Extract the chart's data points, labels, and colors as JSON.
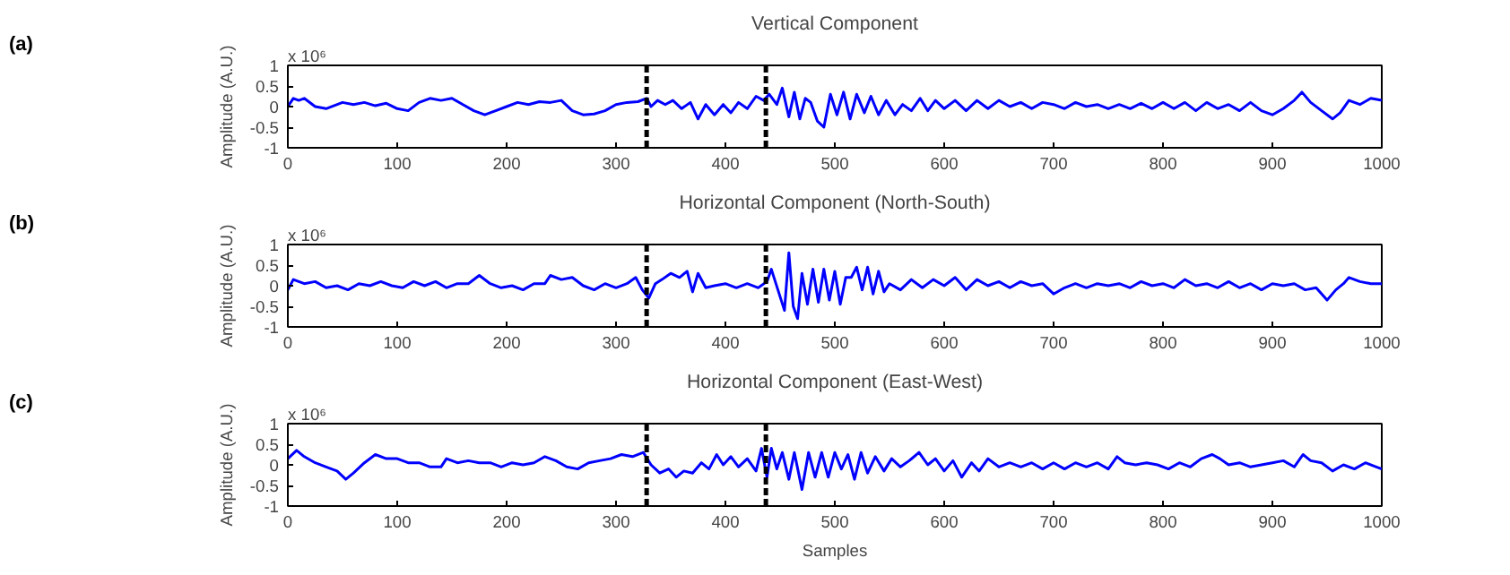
{
  "chart_data": [
    {
      "type": "line",
      "title": "Vertical Component",
      "ylabel": "Amplitude (A.U.)",
      "annotations": [
        "(a)",
        "x 10⁶"
      ],
      "xlim": [
        0,
        1000
      ],
      "ylim": [
        -1,
        1
      ],
      "xticks": [
        0,
        100,
        200,
        300,
        400,
        500,
        600,
        700,
        800,
        900,
        1000
      ],
      "yticks": [
        -1,
        -0.5,
        0,
        0.5,
        1
      ],
      "grid": false,
      "marker": "none",
      "line_style": "solid",
      "ref_lines": [
        {
          "axis": "x",
          "value": 328,
          "color": "#000000",
          "line_style": "dashed"
        },
        {
          "axis": "x",
          "value": 437,
          "color": "#000000",
          "line_style": "dashed"
        }
      ],
      "series": [
        {
          "color": "#0000ff",
          "x": [
            0,
            5,
            10,
            15,
            25,
            35,
            50,
            60,
            70,
            80,
            90,
            100,
            110,
            120,
            130,
            140,
            150,
            160,
            170,
            180,
            190,
            200,
            210,
            220,
            230,
            240,
            250,
            260,
            270,
            280,
            290,
            300,
            310,
            320,
            328,
            332,
            338,
            345,
            352,
            360,
            368,
            375,
            382,
            390,
            398,
            405,
            412,
            420,
            428,
            435,
            440,
            447,
            452,
            458,
            463,
            468,
            473,
            478,
            484,
            490,
            496,
            502,
            508,
            514,
            520,
            527,
            533,
            540,
            547,
            555,
            562,
            570,
            578,
            585,
            592,
            600,
            610,
            620,
            630,
            640,
            650,
            660,
            670,
            680,
            690,
            700,
            710,
            720,
            730,
            740,
            750,
            760,
            770,
            780,
            790,
            800,
            810,
            820,
            830,
            840,
            850,
            860,
            870,
            880,
            890,
            900,
            910,
            920,
            927,
            935,
            945,
            955,
            962,
            970,
            980,
            990,
            1000
          ],
          "values": [
            0,
            0.2,
            0.15,
            0.2,
            0,
            -0.05,
            0.1,
            0.05,
            0.1,
            0.02,
            0.08,
            -0.05,
            -0.1,
            0.1,
            0.2,
            0.15,
            0.2,
            0.05,
            -0.1,
            -0.2,
            -0.1,
            0,
            0.1,
            0.05,
            0.12,
            0.1,
            0.15,
            -0.1,
            -0.2,
            -0.18,
            -0.1,
            0.05,
            0.1,
            0.12,
            0.2,
            0,
            0.15,
            0.05,
            0.15,
            -0.05,
            0.1,
            -0.3,
            0.05,
            -0.2,
            0.05,
            -0.15,
            0.1,
            -0.05,
            0.25,
            0.15,
            0.3,
            0.05,
            0.45,
            -0.25,
            0.35,
            -0.3,
            0.2,
            0.1,
            -0.35,
            -0.5,
            0.3,
            -0.2,
            0.35,
            -0.3,
            0.3,
            -0.15,
            0.25,
            -0.2,
            0.15,
            -0.2,
            0.05,
            -0.1,
            0.2,
            -0.1,
            0.15,
            -0.05,
            0.15,
            -0.1,
            0.15,
            -0.05,
            0.15,
            0,
            0.1,
            -0.05,
            0.1,
            0.05,
            -0.05,
            0.1,
            0,
            0.05,
            -0.05,
            0.05,
            -0.05,
            0.08,
            -0.05,
            0.1,
            -0.05,
            0.1,
            -0.1,
            0.1,
            -0.05,
            0.05,
            -0.1,
            0.1,
            -0.1,
            -0.2,
            -0.05,
            0.15,
            0.35,
            0.1,
            -0.1,
            -0.3,
            -0.15,
            0.15,
            0.05,
            0.2,
            0.15
          ]
        }
      ]
    },
    {
      "type": "line",
      "title": "Horizontal Component (North-South)",
      "ylabel": "Amplitude (A.U.)",
      "annotations": [
        "(b)",
        "x 10⁶"
      ],
      "xlim": [
        0,
        1000
      ],
      "ylim": [
        -1,
        1
      ],
      "xticks": [
        0,
        100,
        200,
        300,
        400,
        500,
        600,
        700,
        800,
        900,
        1000
      ],
      "yticks": [
        -1,
        -0.5,
        0,
        0.5,
        1
      ],
      "grid": false,
      "marker": "none",
      "line_style": "solid",
      "ref_lines": [
        {
          "axis": "x",
          "value": 328,
          "color": "#000000",
          "line_style": "dashed"
        },
        {
          "axis": "x",
          "value": 437,
          "color": "#000000",
          "line_style": "dashed"
        }
      ],
      "series": [
        {
          "color": "#0000ff",
          "x": [
            0,
            5,
            15,
            25,
            35,
            45,
            55,
            65,
            75,
            85,
            95,
            105,
            115,
            125,
            135,
            145,
            155,
            165,
            175,
            185,
            195,
            205,
            215,
            225,
            235,
            240,
            250,
            260,
            270,
            280,
            290,
            300,
            310,
            318,
            324,
            330,
            336,
            342,
            350,
            358,
            365,
            370,
            375,
            382,
            390,
            400,
            410,
            420,
            430,
            438,
            442,
            448,
            454,
            458,
            462,
            466,
            470,
            475,
            480,
            485,
            490,
            495,
            500,
            505,
            510,
            515,
            520,
            525,
            530,
            535,
            540,
            545,
            550,
            560,
            570,
            580,
            590,
            600,
            610,
            620,
            630,
            640,
            650,
            660,
            670,
            680,
            690,
            700,
            710,
            720,
            730,
            740,
            750,
            760,
            770,
            780,
            790,
            800,
            810,
            820,
            830,
            840,
            850,
            860,
            870,
            880,
            890,
            900,
            910,
            920,
            930,
            940,
            950,
            958,
            965,
            970,
            980,
            990,
            1000
          ],
          "values": [
            -0.1,
            0.15,
            0.05,
            0.1,
            -0.05,
            0,
            -0.1,
            0.05,
            0,
            0.1,
            0,
            -0.05,
            0.1,
            0,
            0.1,
            -0.05,
            0.05,
            0.05,
            0.25,
            0.05,
            -0.05,
            0,
            -0.1,
            0.05,
            0.05,
            0.25,
            0.15,
            0.2,
            0,
            -0.1,
            0.05,
            -0.05,
            0.05,
            0.2,
            -0.1,
            -0.3,
            0.05,
            0.15,
            0.3,
            0.2,
            0.35,
            -0.15,
            0.3,
            -0.05,
            0,
            0.05,
            -0.05,
            0.05,
            -0.05,
            0.1,
            0.4,
            -0.1,
            -0.6,
            0.8,
            -0.5,
            -0.8,
            0.3,
            -0.45,
            0.4,
            -0.4,
            0.4,
            -0.35,
            0.35,
            -0.45,
            0.2,
            0.2,
            0.45,
            -0.1,
            0.45,
            -0.2,
            0.35,
            -0.15,
            0.05,
            -0.1,
            0.15,
            -0.05,
            0.15,
            0,
            0.2,
            -0.1,
            0.15,
            0,
            0.1,
            -0.05,
            0.1,
            0,
            0.05,
            -0.2,
            -0.05,
            0.05,
            -0.05,
            0.05,
            0,
            0.05,
            -0.05,
            0.1,
            0,
            0.05,
            -0.05,
            0.15,
            0,
            0.05,
            -0.05,
            0.1,
            -0.05,
            0.05,
            -0.1,
            0.05,
            0,
            0.05,
            -0.1,
            -0.05,
            -0.35,
            -0.1,
            0.05,
            0.2,
            0.1,
            0.05,
            0.05
          ]
        }
      ]
    },
    {
      "type": "line",
      "title": "Horizontal Component (East-West)",
      "xlabel": "Samples",
      "ylabel": "Amplitude (A.U.)",
      "annotations": [
        "(c)",
        "x 10⁶"
      ],
      "xlim": [
        0,
        1000
      ],
      "ylim": [
        -1,
        1
      ],
      "xticks": [
        0,
        100,
        200,
        300,
        400,
        500,
        600,
        700,
        800,
        900,
        1000
      ],
      "yticks": [
        -1,
        -0.5,
        0,
        0.5,
        1
      ],
      "grid": false,
      "marker": "none",
      "line_style": "solid",
      "ref_lines": [
        {
          "axis": "x",
          "value": 328,
          "color": "#000000",
          "line_style": "dashed"
        },
        {
          "axis": "x",
          "value": 437,
          "color": "#000000",
          "line_style": "dashed"
        }
      ],
      "series": [
        {
          "color": "#0000ff",
          "x": [
            0,
            8,
            15,
            25,
            35,
            45,
            53,
            60,
            70,
            80,
            90,
            100,
            110,
            120,
            130,
            140,
            145,
            155,
            165,
            175,
            185,
            195,
            205,
            215,
            225,
            235,
            245,
            255,
            265,
            275,
            285,
            295,
            305,
            315,
            325,
            332,
            340,
            348,
            355,
            362,
            370,
            378,
            385,
            392,
            398,
            405,
            412,
            420,
            428,
            433,
            438,
            442,
            447,
            452,
            458,
            463,
            470,
            476,
            482,
            488,
            494,
            500,
            506,
            512,
            518,
            524,
            530,
            537,
            545,
            552,
            560,
            568,
            577,
            585,
            592,
            600,
            608,
            616,
            625,
            632,
            640,
            650,
            660,
            670,
            680,
            690,
            700,
            710,
            720,
            730,
            740,
            750,
            758,
            765,
            775,
            785,
            795,
            805,
            815,
            825,
            835,
            845,
            852,
            860,
            870,
            880,
            890,
            900,
            910,
            920,
            928,
            935,
            945,
            955,
            965,
            975,
            985,
            995,
            1000
          ],
          "values": [
            0.15,
            0.35,
            0.2,
            0.05,
            -0.05,
            -0.15,
            -0.35,
            -0.2,
            0.05,
            0.25,
            0.15,
            0.15,
            0.05,
            0.05,
            -0.05,
            -0.05,
            0.15,
            0.05,
            0.1,
            0.05,
            0.05,
            -0.05,
            0.05,
            0,
            0.05,
            0.2,
            0.1,
            -0.05,
            -0.1,
            0.05,
            0.1,
            0.15,
            0.25,
            0.2,
            0.3,
            0,
            -0.2,
            -0.1,
            -0.3,
            -0.15,
            -0.2,
            0.05,
            -0.1,
            0.25,
            0,
            0.2,
            -0.05,
            0.15,
            -0.15,
            0.4,
            -0.3,
            0.4,
            -0.1,
            0.3,
            -0.35,
            0.3,
            -0.6,
            0.3,
            -0.3,
            0.3,
            -0.3,
            0.3,
            -0.1,
            0.25,
            -0.35,
            0.3,
            -0.2,
            0.2,
            -0.15,
            0.15,
            -0.05,
            0.1,
            0.3,
            0,
            0.15,
            -0.15,
            0.1,
            -0.3,
            0.05,
            -0.15,
            0.15,
            -0.05,
            0.05,
            -0.05,
            0.05,
            -0.1,
            0.05,
            -0.1,
            0.05,
            -0.05,
            0.05,
            -0.1,
            0.2,
            0.05,
            0,
            0.05,
            0,
            -0.1,
            0.05,
            -0.05,
            0.15,
            0.25,
            0.15,
            0,
            0.05,
            -0.05,
            0,
            0.05,
            0.1,
            -0.05,
            0.25,
            0.1,
            0.05,
            -0.15,
            0,
            -0.1,
            0.05,
            -0.05,
            -0.1
          ]
        }
      ]
    }
  ]
}
